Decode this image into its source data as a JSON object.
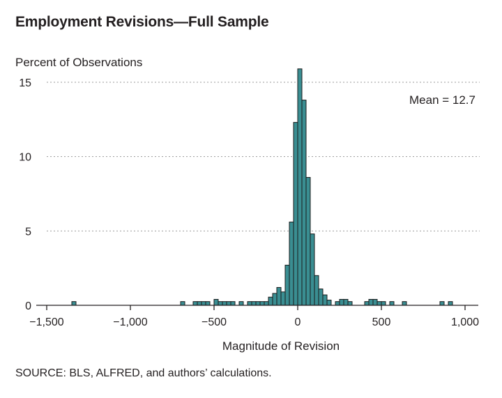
{
  "chart_data": {
    "type": "bar",
    "title": "Employment Revisions—Full Sample",
    "ylabel": "Percent of Observations",
    "xlabel": "Magnitude of Revision",
    "annotation": "Mean = 12.7",
    "source": "SOURCE: BLS, ALFRED, and authors’ calculations.",
    "xlim": [
      -1500,
      1000
    ],
    "ylim": [
      0,
      15
    ],
    "x_ticks": [
      -1500,
      -1000,
      -500,
      0,
      500,
      1000
    ],
    "x_tick_labels": [
      "−1,500",
      "−1,000",
      "−500",
      "0",
      "500",
      "1,000"
    ],
    "y_ticks": [
      0,
      5,
      10,
      15
    ],
    "y_tick_labels": [
      "0",
      "5",
      "10",
      "15"
    ],
    "grid": "horizontal dotted",
    "bin_width": 25,
    "bar_color": "#3a8e92",
    "bar_edge_color": "#1b1b1b",
    "grid_color": "#9a9a9a",
    "bars": [
      {
        "x": -1337.5,
        "value": 0.25
      },
      {
        "x": -687.5,
        "value": 0.25
      },
      {
        "x": -612.5,
        "value": 0.25
      },
      {
        "x": -587.5,
        "value": 0.25
      },
      {
        "x": -562.5,
        "value": 0.25
      },
      {
        "x": -537.5,
        "value": 0.25
      },
      {
        "x": -487.5,
        "value": 0.4
      },
      {
        "x": -462.5,
        "value": 0.25
      },
      {
        "x": -437.5,
        "value": 0.25
      },
      {
        "x": -412.5,
        "value": 0.25
      },
      {
        "x": -387.5,
        "value": 0.25
      },
      {
        "x": -337.5,
        "value": 0.25
      },
      {
        "x": -287.5,
        "value": 0.25
      },
      {
        "x": -262.5,
        "value": 0.25
      },
      {
        "x": -237.5,
        "value": 0.25
      },
      {
        "x": -212.5,
        "value": 0.25
      },
      {
        "x": -187.5,
        "value": 0.25
      },
      {
        "x": -162.5,
        "value": 0.55
      },
      {
        "x": -137.5,
        "value": 0.8
      },
      {
        "x": -112.5,
        "value": 1.2
      },
      {
        "x": -87.5,
        "value": 0.9
      },
      {
        "x": -62.5,
        "value": 2.7
      },
      {
        "x": -37.5,
        "value": 5.6
      },
      {
        "x": -12.5,
        "value": 12.3
      },
      {
        "x": 12.5,
        "value": 15.9
      },
      {
        "x": 37.5,
        "value": 13.8
      },
      {
        "x": 62.5,
        "value": 8.6
      },
      {
        "x": 87.5,
        "value": 4.8
      },
      {
        "x": 112.5,
        "value": 2.0
      },
      {
        "x": 137.5,
        "value": 1.1
      },
      {
        "x": 162.5,
        "value": 0.7
      },
      {
        "x": 187.5,
        "value": 0.35
      },
      {
        "x": 237.5,
        "value": 0.25
      },
      {
        "x": 262.5,
        "value": 0.4
      },
      {
        "x": 287.5,
        "value": 0.4
      },
      {
        "x": 312.5,
        "value": 0.25
      },
      {
        "x": 412.5,
        "value": 0.25
      },
      {
        "x": 437.5,
        "value": 0.4
      },
      {
        "x": 462.5,
        "value": 0.4
      },
      {
        "x": 487.5,
        "value": 0.25
      },
      {
        "x": 512.5,
        "value": 0.25
      },
      {
        "x": 562.5,
        "value": 0.25
      },
      {
        "x": 637.5,
        "value": 0.25
      },
      {
        "x": 862.5,
        "value": 0.25
      },
      {
        "x": 912.5,
        "value": 0.25
      }
    ]
  }
}
